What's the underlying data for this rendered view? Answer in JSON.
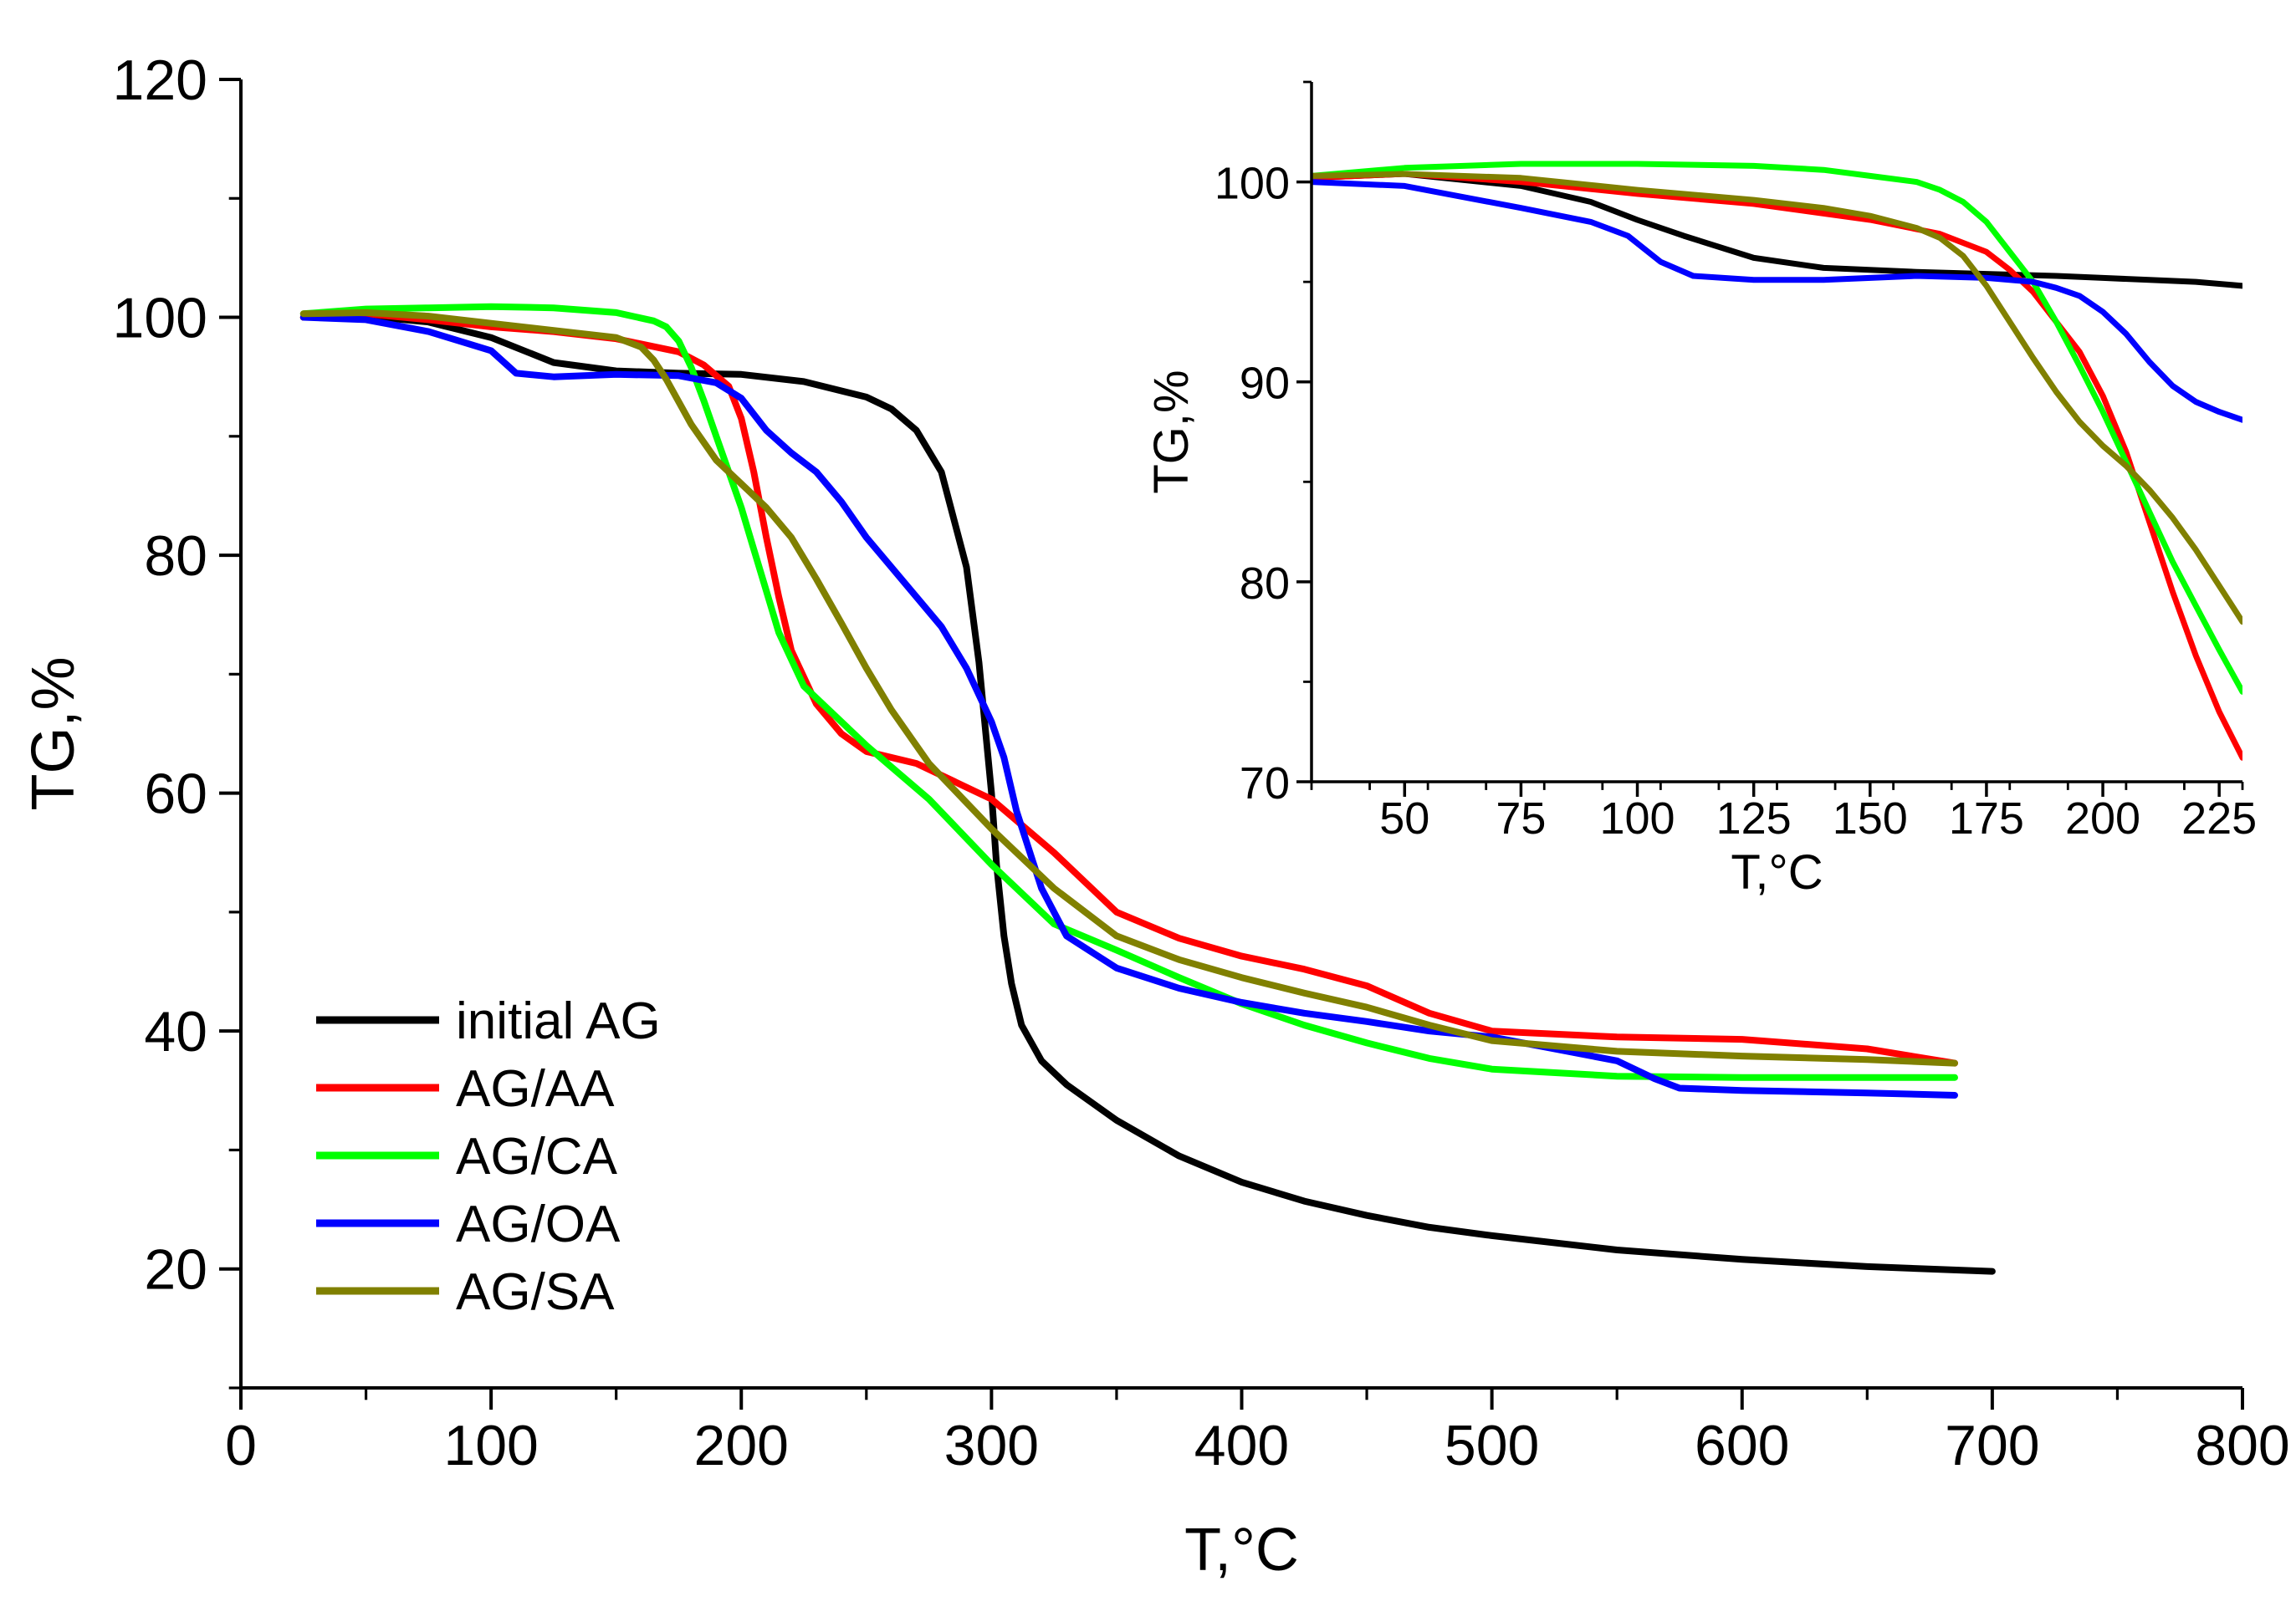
{
  "colors": {
    "initial_ag": "#000000",
    "ag_aa": "#ff0000",
    "ag_ca": "#00ff00",
    "ag_oa": "#0000ff",
    "ag_sa": "#808000"
  },
  "chart_data": [
    {
      "type": "line",
      "xlabel": "T,°C",
      "ylabel": "TG,%",
      "xlim": [
        0,
        800
      ],
      "ylim": [
        10,
        120
      ],
      "xticks": [
        0,
        100,
        200,
        300,
        400,
        500,
        600,
        700,
        800
      ],
      "yticks": [
        20,
        40,
        60,
        80,
        100,
        120
      ],
      "xtick_labels": [
        "0",
        "100",
        "200",
        "300",
        "400",
        "500",
        "600",
        "700",
        "800"
      ],
      "ytick_labels": [
        "20",
        "40",
        "60",
        "80",
        "100",
        "120"
      ],
      "legend": {
        "placement": "bottom-left"
      },
      "series": [
        {
          "name": "initial AG",
          "color": "#000000",
          "x": [
            25,
            50,
            75,
            100,
            125,
            150,
            175,
            200,
            225,
            250,
            260,
            270,
            280,
            290,
            295,
            300,
            302,
            305,
            308,
            312,
            320,
            330,
            350,
            375,
            400,
            425,
            450,
            475,
            500,
            550,
            600,
            650,
            700
          ],
          "y": [
            100,
            100.1,
            99.6,
            98.3,
            96.2,
            95.5,
            95.3,
            95.2,
            94.6,
            93.3,
            92.3,
            90.5,
            87,
            79,
            71,
            60,
            54,
            48,
            44,
            40.5,
            37.5,
            35.5,
            32.5,
            29.5,
            27.3,
            25.7,
            24.5,
            23.5,
            22.8,
            21.6,
            20.8,
            20.2,
            19.8
          ]
        },
        {
          "name": "AG/AA",
          "color": "#ff0000",
          "x": [
            25,
            50,
            75,
            100,
            125,
            150,
            175,
            185,
            195,
            200,
            205,
            210,
            215,
            220,
            230,
            240,
            250,
            270,
            300,
            325,
            350,
            375,
            400,
            425,
            450,
            475,
            500,
            550,
            600,
            650,
            685
          ],
          "y": [
            100,
            100.3,
            99.8,
            99.2,
            98.8,
            98.2,
            97.1,
            96,
            94.2,
            91.5,
            87,
            81.5,
            76.5,
            72,
            67.5,
            65,
            63.5,
            62.5,
            59.5,
            55,
            50,
            47.8,
            46.3,
            45.2,
            43.8,
            41.5,
            40,
            39.5,
            39.3,
            38.5,
            37.3
          ]
        },
        {
          "name": "AG/CA",
          "color": "#00ff00",
          "x": [
            25,
            50,
            75,
            100,
            125,
            150,
            165,
            170,
            175,
            180,
            185,
            190,
            195,
            200,
            205,
            210,
            215,
            225,
            250,
            275,
            300,
            325,
            350,
            375,
            400,
            425,
            450,
            475,
            500,
            550,
            600,
            650,
            685
          ],
          "y": [
            100.3,
            100.7,
            100.8,
            100.9,
            100.8,
            100.4,
            99.7,
            99.2,
            98,
            95.8,
            93,
            90,
            87,
            84,
            80.5,
            77,
            73.5,
            69,
            64,
            59.5,
            54,
            49,
            46.8,
            44.5,
            42.3,
            40.5,
            39,
            37.7,
            36.8,
            36.2,
            36.1,
            36.1,
            36.1
          ]
        },
        {
          "name": "AG/OA",
          "color": "#0000ff",
          "x": [
            25,
            50,
            75,
            100,
            110,
            125,
            150,
            175,
            190,
            200,
            210,
            220,
            230,
            240,
            250,
            260,
            280,
            290,
            300,
            305,
            310,
            320,
            330,
            350,
            375,
            400,
            425,
            450,
            475,
            500,
            525,
            550,
            565,
            575,
            600,
            650,
            685
          ],
          "y": [
            100,
            99.8,
            98.8,
            97.2,
            95.3,
            95,
            95.2,
            95.1,
            94.5,
            93.2,
            90.5,
            88.6,
            87,
            84.5,
            81.5,
            79,
            74,
            70.5,
            66,
            63,
            58.5,
            52,
            48,
            45.3,
            43.6,
            42.4,
            41.5,
            40.8,
            40,
            39.5,
            38.5,
            37.5,
            36,
            35.2,
            35,
            34.8,
            34.6
          ]
        },
        {
          "name": "AG/SA",
          "color": "#808000",
          "x": [
            25,
            50,
            75,
            100,
            125,
            150,
            160,
            165,
            170,
            180,
            190,
            200,
            210,
            220,
            230,
            240,
            250,
            260,
            275,
            300,
            325,
            350,
            375,
            400,
            425,
            450,
            475,
            500,
            550,
            600,
            650,
            685
          ],
          "y": [
            100.3,
            100.4,
            100.1,
            99.5,
            98.9,
            98.3,
            97.5,
            96.4,
            94.8,
            91,
            88,
            86,
            84,
            81.5,
            78,
            74.3,
            70.5,
            67,
            62.5,
            57,
            52,
            48,
            46,
            44.5,
            43.2,
            42,
            40.5,
            39.2,
            38.3,
            37.9,
            37.6,
            37.3
          ]
        }
      ]
    },
    {
      "type": "line",
      "xlabel": "T,°C",
      "ylabel": "TG,%",
      "xlim": [
        30,
        230
      ],
      "ylim": [
        70,
        105
      ],
      "xticks": [
        50,
        75,
        100,
        125,
        150,
        175,
        200,
        225
      ],
      "yticks": [
        70,
        80,
        90,
        100
      ],
      "xtick_labels": [
        "50",
        "75",
        "100",
        "125",
        "150",
        "175",
        "200",
        "225"
      ],
      "ytick_labels": [
        "70",
        "80",
        "90",
        "100"
      ],
      "series": [
        {
          "color": "#000000",
          "x": [
            30,
            50,
            75,
            90,
            100,
            110,
            125,
            140,
            160,
            175,
            190,
            200,
            210,
            220,
            230
          ],
          "y": [
            100.2,
            100.4,
            99.8,
            99,
            98.1,
            97.3,
            96.2,
            95.7,
            95.5,
            95.4,
            95.3,
            95.2,
            95.1,
            95,
            94.8
          ]
        },
        {
          "color": "#ff0000",
          "x": [
            30,
            50,
            75,
            100,
            125,
            150,
            165,
            175,
            180,
            185,
            190,
            195,
            200,
            205,
            210,
            215,
            220,
            225,
            230
          ],
          "y": [
            100.2,
            100.4,
            100,
            99.4,
            98.9,
            98.1,
            97.4,
            96.5,
            95.6,
            94.5,
            93,
            91.5,
            89.3,
            86.5,
            83,
            79.5,
            76.3,
            73.5,
            71.2
          ]
        },
        {
          "color": "#00ff00",
          "x": [
            30,
            50,
            75,
            100,
            125,
            140,
            150,
            160,
            165,
            170,
            175,
            180,
            185,
            190,
            195,
            200,
            205,
            210,
            215,
            220,
            225,
            230
          ],
          "y": [
            100.3,
            100.7,
            100.9,
            100.9,
            100.8,
            100.6,
            100.3,
            100,
            99.6,
            99,
            98,
            96.5,
            95,
            93,
            90.8,
            88.5,
            86,
            83.5,
            81,
            78.8,
            76.6,
            74.5
          ]
        },
        {
          "color": "#0000ff",
          "x": [
            30,
            50,
            75,
            90,
            98,
            105,
            112,
            125,
            140,
            160,
            175,
            185,
            190,
            195,
            200,
            205,
            210,
            215,
            220,
            225,
            230
          ],
          "y": [
            100,
            99.8,
            98.7,
            98,
            97.3,
            96,
            95.3,
            95.1,
            95.1,
            95.3,
            95.2,
            95,
            94.7,
            94.3,
            93.5,
            92.4,
            91,
            89.8,
            89,
            88.5,
            88.1
          ]
        },
        {
          "color": "#808000",
          "x": [
            30,
            50,
            75,
            100,
            125,
            140,
            150,
            160,
            165,
            170,
            175,
            180,
            185,
            190,
            195,
            200,
            205,
            210,
            215,
            220,
            225,
            230
          ],
          "y": [
            100.3,
            100.4,
            100.2,
            99.6,
            99.1,
            98.7,
            98.3,
            97.7,
            97.2,
            96.3,
            94.8,
            93,
            91.2,
            89.5,
            88,
            86.8,
            85.8,
            84.6,
            83.2,
            81.6,
            79.8,
            78
          ]
        }
      ]
    }
  ]
}
